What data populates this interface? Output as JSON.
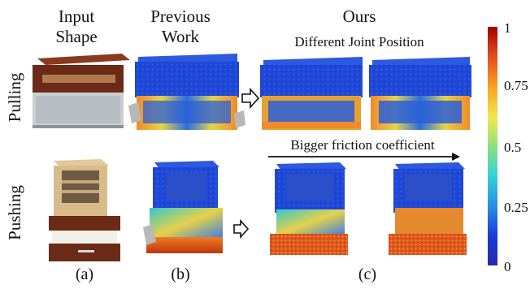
{
  "headers": {
    "input_shape_l1": "Input",
    "input_shape_l2": "Shape",
    "previous_work_l1": "Previous",
    "previous_work_l2": "Work",
    "ours": "Ours",
    "ours_subtitle": "Different Joint Position"
  },
  "rows": {
    "pulling": "Pulling",
    "pushing": "Pushing"
  },
  "annotations": {
    "friction": "Bigger friction coefficient"
  },
  "captions": {
    "a": "(a)",
    "b": "(b)",
    "c": "(c)"
  },
  "colorbar": {
    "ticks": [
      "1",
      "0.75",
      "0.5",
      "0.25",
      "0"
    ],
    "stops": [
      "#a50000",
      "#e34a1f",
      "#f8a020",
      "#f1e84e",
      "#8ee07a",
      "#35d4d4",
      "#2a8de6",
      "#1a3bd6",
      "#2a2aa8"
    ]
  },
  "colors": {
    "wood_dark": "#6b2a16",
    "wood_light": "#d9bb8a",
    "glass": "#c9cfd3",
    "blue": "#1f46d6",
    "hot_orange": "#e0581f",
    "hot_yellow": "#e6d14a",
    "hot_cyan": "#36c7c7"
  }
}
